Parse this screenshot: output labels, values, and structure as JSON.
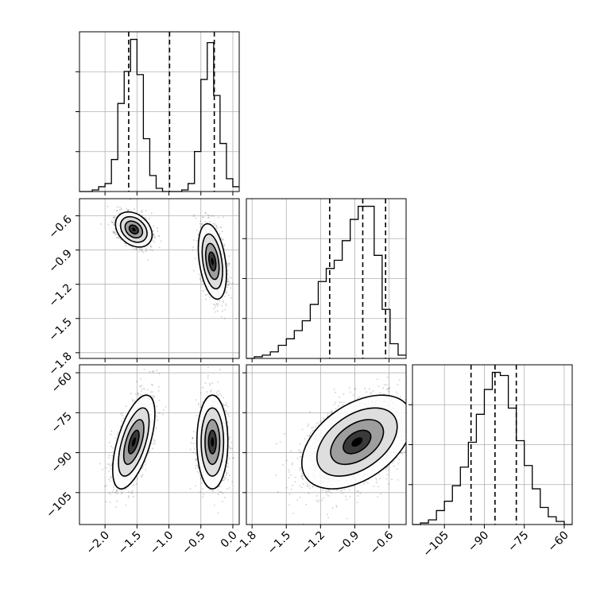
{
  "chart_data": {
    "type": "corner",
    "parameters": [
      {
        "range": [
          -2.4,
          0.1
        ],
        "ticks": [
          -2.0,
          -1.5,
          -1.0,
          -0.5,
          0.0
        ],
        "tick_labels": [
          "−2.0",
          "−1.5",
          "−1.0",
          "−0.5",
          "0.0"
        ],
        "quantiles": [
          -1.63,
          -0.99,
          -0.29
        ],
        "hist_edges": [
          -2.4,
          -2.3,
          -2.2,
          -2.1,
          -2.0,
          -1.9,
          -1.8,
          -1.7,
          -1.6,
          -1.5,
          -1.4,
          -1.3,
          -1.2,
          -1.1,
          -1.0,
          -0.9,
          -0.8,
          -0.7,
          -0.6,
          -0.5,
          -0.4,
          -0.3,
          -0.2,
          -0.1,
          0.0,
          0.1
        ],
        "hist_counts": [
          0,
          0,
          1,
          3,
          5,
          20,
          55,
          75,
          95,
          73,
          33,
          10,
          2,
          0,
          0,
          0,
          1,
          5,
          25,
          70,
          93,
          60,
          30,
          8,
          3
        ]
      },
      {
        "range": [
          -1.85,
          -0.45
        ],
        "ticks": [
          -1.8,
          -1.5,
          -1.2,
          -0.9,
          -0.6
        ],
        "tick_labels": [
          "−1.8",
          "−1.5",
          "−1.2",
          "−0.9",
          "−0.6"
        ],
        "quantiles": [
          -1.12,
          -0.83,
          -0.63
        ],
        "hist_edges": [
          -1.85,
          -1.78,
          -1.71,
          -1.64,
          -1.57,
          -1.5,
          -1.43,
          -1.36,
          -1.29,
          -1.22,
          -1.15,
          -1.08,
          -1.01,
          -0.94,
          -0.87,
          -0.8,
          -0.73,
          -0.66,
          -0.59,
          -0.52,
          -0.45
        ],
        "hist_counts": [
          0,
          1,
          2,
          4,
          8,
          12,
          17,
          23,
          33,
          47,
          55,
          60,
          72,
          85,
          93,
          93,
          63,
          30,
          9,
          2
        ]
      },
      {
        "range": [
          -117,
          -57
        ],
        "ticks": [
          -105,
          -90,
          -75,
          -60
        ],
        "tick_labels": [
          "−105",
          "−90",
          "−75",
          "−60"
        ],
        "quantiles": [
          -95,
          -86,
          -78
        ],
        "hist_edges": [
          -117,
          -114,
          -111,
          -108,
          -105,
          -102,
          -99,
          -96,
          -93,
          -90,
          -87,
          -84,
          -81,
          -78,
          -75,
          -72,
          -69,
          -66,
          -63,
          -60,
          -57
        ],
        "hist_counts": [
          0,
          1,
          3,
          9,
          15,
          25,
          37,
          53,
          71,
          87,
          98,
          96,
          75,
          54,
          38,
          23,
          11,
          5,
          2,
          0
        ]
      }
    ],
    "pairs": [
      {
        "x_param": 0,
        "y_param": 1,
        "modes": [
          {
            "mx": -1.55,
            "my": -0.72,
            "sx": 0.13,
            "sy": 0.07,
            "rho": -0.3,
            "n": 1500
          },
          {
            "mx": -0.32,
            "my": -1.0,
            "sx": 0.1,
            "sy": 0.15,
            "rho": -0.35,
            "n": 1500
          }
        ]
      },
      {
        "x_param": 0,
        "y_param": 2,
        "modes": [
          {
            "mx": -1.55,
            "my": -86,
            "sx": 0.15,
            "sy": 8,
            "rho": 0.6,
            "n": 1500
          },
          {
            "mx": -0.32,
            "my": -86,
            "sx": 0.11,
            "sy": 8,
            "rho": 0.0,
            "n": 1500
          }
        ]
      },
      {
        "x_param": 1,
        "y_param": 2,
        "modes": [
          {
            "mx": -0.88,
            "my": -86,
            "sx": 0.22,
            "sy": 8,
            "rho": 0.45,
            "n": 3000
          }
        ]
      }
    ]
  }
}
